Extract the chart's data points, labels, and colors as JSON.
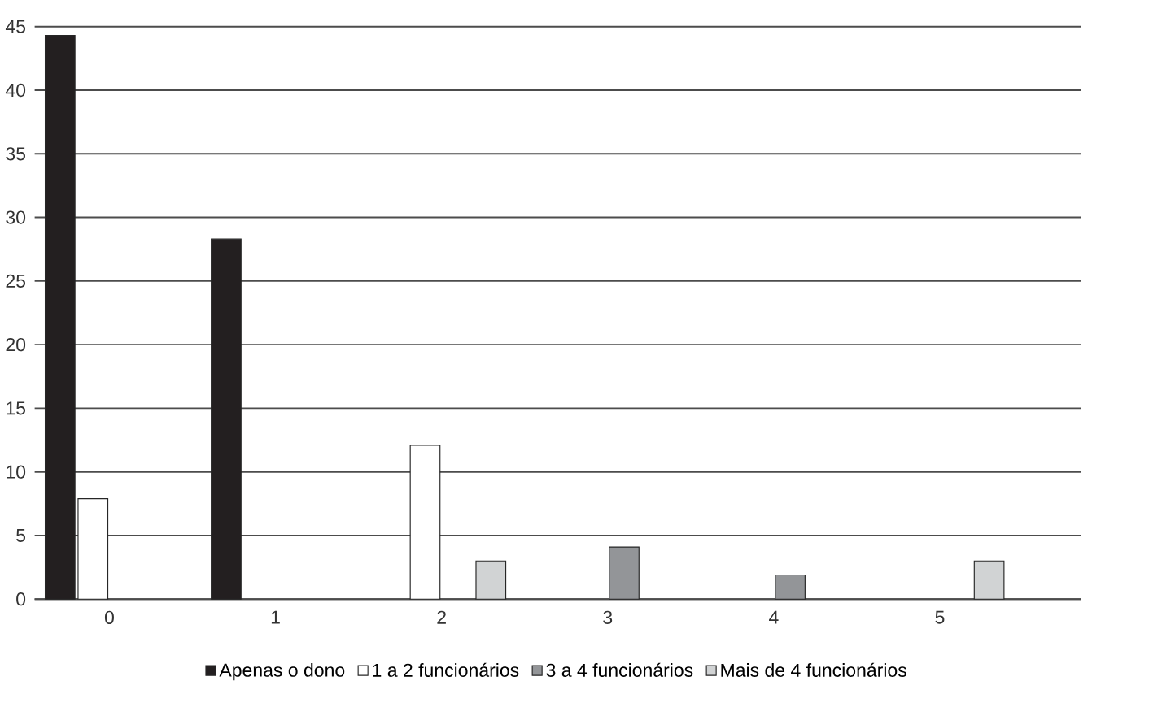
{
  "chart_data": {
    "type": "bar",
    "categories": [
      "0",
      "1",
      "2",
      "3",
      "4",
      "5"
    ],
    "series": [
      {
        "name": "Apenas o dono",
        "color": "#231f20",
        "values": [
          44.3,
          28.3,
          null,
          null,
          null,
          null
        ]
      },
      {
        "name": "1 a 2 funcionários",
        "color": "#ffffff",
        "values": [
          7.9,
          null,
          12.1,
          null,
          null,
          null
        ]
      },
      {
        "name": "3 a 4 funcionários",
        "color": "#939598",
        "values": [
          null,
          null,
          null,
          4.1,
          1.9,
          null
        ]
      },
      {
        "name": "Mais de 4 funcionários",
        "color": "#d1d3d4",
        "values": [
          null,
          null,
          3,
          null,
          null,
          3
        ]
      }
    ],
    "ylim": [
      0,
      45
    ],
    "yticks": [
      0,
      5,
      10,
      15,
      20,
      25,
      30,
      35,
      40,
      45
    ],
    "grid": "y",
    "legend": "bottom"
  }
}
